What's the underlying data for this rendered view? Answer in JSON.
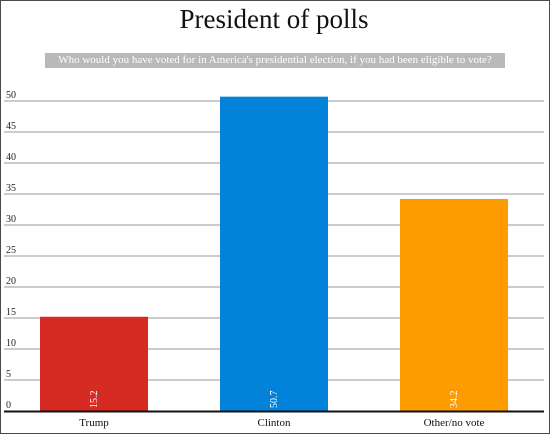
{
  "chart_data": {
    "type": "bar",
    "title": "President of polls",
    "subtitle": "Who would you have voted for in America's presidential election, if you had been eligible to vote?",
    "categories": [
      "Trump",
      "Clinton",
      "Other/no vote"
    ],
    "values": [
      15.2,
      50.7,
      34.2
    ],
    "data_labels": [
      "15.2",
      "50.7",
      "34.2"
    ],
    "colors": [
      "#d52b23",
      "#0282d8",
      "#fd9b01"
    ],
    "ylim": [
      0,
      50
    ],
    "yticks": [
      0,
      5,
      10,
      15,
      20,
      25,
      30,
      35,
      40,
      45,
      50
    ],
    "ytick_labels": [
      "0",
      "5",
      "10",
      "15",
      "20",
      "25",
      "30",
      "35",
      "40",
      "45",
      "50"
    ],
    "grid": true,
    "legend": "none",
    "xlabel": "",
    "ylabel": ""
  }
}
